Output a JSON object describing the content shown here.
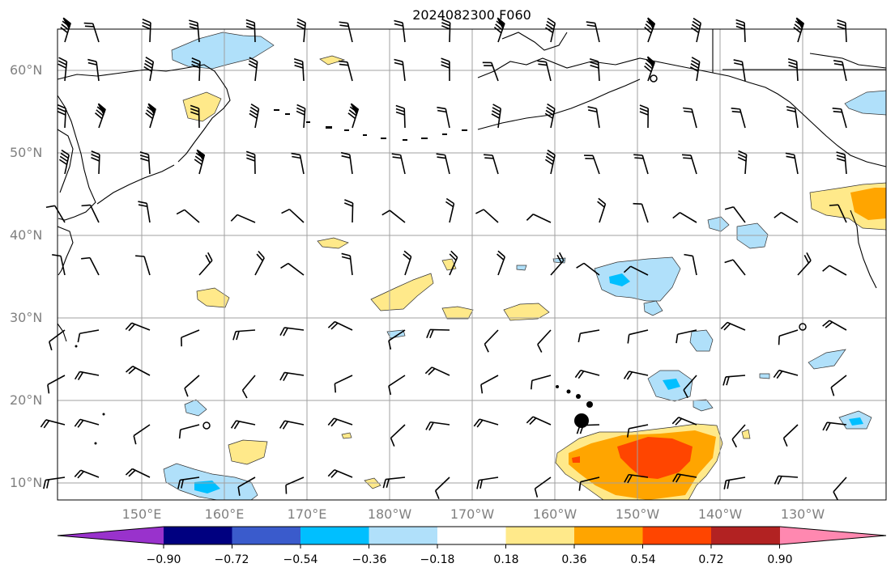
{
  "title": "2024082300 F060",
  "lat_labels": [
    "60°N",
    "50°N",
    "40°N",
    "30°N",
    "20°N",
    "10°N"
  ],
  "lon_labels": [
    "150°E",
    "160°E",
    "170°E",
    "180°W",
    "170°W",
    "160°W",
    "150°W",
    "140°W",
    "130°W"
  ],
  "colorbar": {
    "labels": [
      "−0.90",
      "−0.72",
      "−0.54",
      "−0.36",
      "−0.18",
      "0.18",
      "0.36",
      "0.54",
      "0.72",
      "0.90"
    ],
    "colors": [
      "#9932cc",
      "#000080",
      "#3a5bcc",
      "#00bfff",
      "#b0e0fa",
      "#ffffff",
      "#ffe98a",
      "#ffa500",
      "#ff4500",
      "#b22222",
      "#ff88b0"
    ]
  },
  "colors": {
    "neg_light": "#b0e0fa",
    "neg_mid": "#00bfff",
    "pos_light": "#ffe98a",
    "pos_mid": "#ffa500",
    "pos_high": "#ff4500",
    "grid": "#a0a0a0",
    "coast": "#000000"
  }
}
